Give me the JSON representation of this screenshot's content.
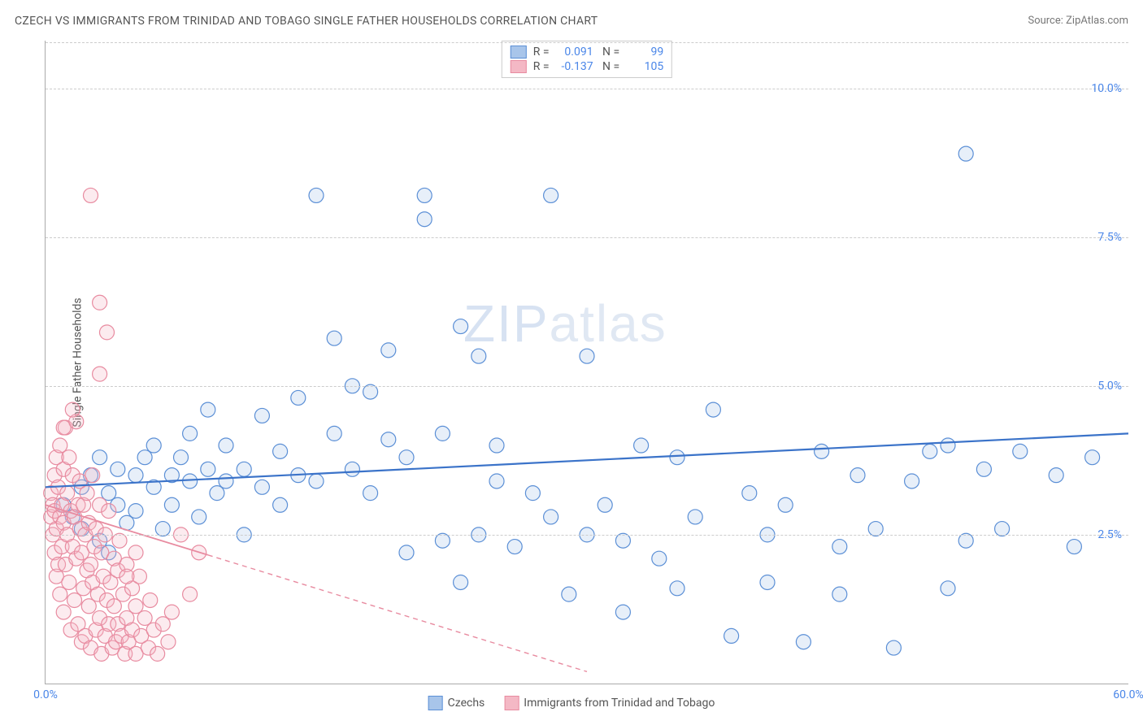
{
  "title": "CZECH VS IMMIGRANTS FROM TRINIDAD AND TOBAGO SINGLE FATHER HOUSEHOLDS CORRELATION CHART",
  "source": "Source: ZipAtlas.com",
  "ylabel": "Single Father Households",
  "watermark_a": "ZIP",
  "watermark_b": "atlas",
  "chart": {
    "type": "scatter",
    "xlim": [
      0,
      60
    ],
    "ylim": [
      0,
      10.8
    ],
    "xticks": [
      {
        "v": 0,
        "label": "0.0%"
      },
      {
        "v": 60,
        "label": "60.0%"
      }
    ],
    "yticks": [
      {
        "v": 2.5,
        "label": "2.5%"
      },
      {
        "v": 5.0,
        "label": "5.0%"
      },
      {
        "v": 7.5,
        "label": "7.5%"
      },
      {
        "v": 10.0,
        "label": "10.0%"
      }
    ],
    "grid_color": "#cccccc",
    "background_color": "#ffffff",
    "axis_color": "#aaaaaa",
    "tick_label_color": "#4a86e8",
    "marker_radius": 9,
    "marker_stroke_width": 1.2,
    "marker_fill_opacity": 0.28,
    "series": [
      {
        "name": "Czechs",
        "color_stroke": "#5b8fd6",
        "color_fill": "#a8c5ea",
        "R": "0.091",
        "N": "99",
        "trend": {
          "x1": 0,
          "y1": 3.3,
          "x2": 60,
          "y2": 4.2,
          "dash": "none",
          "width": 2.2,
          "color": "#3b73c9"
        },
        "points": [
          [
            1,
            3.0
          ],
          [
            1.5,
            2.8
          ],
          [
            2,
            2.6
          ],
          [
            2,
            3.3
          ],
          [
            2.5,
            3.5
          ],
          [
            3,
            2.4
          ],
          [
            3,
            3.8
          ],
          [
            3.5,
            2.2
          ],
          [
            3.5,
            3.2
          ],
          [
            4,
            3.0
          ],
          [
            4,
            3.6
          ],
          [
            4.5,
            2.7
          ],
          [
            5,
            3.5
          ],
          [
            5,
            2.9
          ],
          [
            5.5,
            3.8
          ],
          [
            6,
            3.3
          ],
          [
            6,
            4.0
          ],
          [
            6.5,
            2.6
          ],
          [
            7,
            3.5
          ],
          [
            7,
            3.0
          ],
          [
            7.5,
            3.8
          ],
          [
            8,
            4.2
          ],
          [
            8,
            3.4
          ],
          [
            8.5,
            2.8
          ],
          [
            9,
            3.6
          ],
          [
            9,
            4.6
          ],
          [
            9.5,
            3.2
          ],
          [
            10,
            3.4
          ],
          [
            10,
            4.0
          ],
          [
            11,
            3.6
          ],
          [
            11,
            2.5
          ],
          [
            12,
            4.5
          ],
          [
            12,
            3.3
          ],
          [
            13,
            3.0
          ],
          [
            13,
            3.9
          ],
          [
            14,
            4.8
          ],
          [
            14,
            3.5
          ],
          [
            15,
            8.2
          ],
          [
            15,
            3.4
          ],
          [
            16,
            4.2
          ],
          [
            16,
            5.8
          ],
          [
            17,
            3.6
          ],
          [
            17,
            5.0
          ],
          [
            18,
            4.9
          ],
          [
            18,
            3.2
          ],
          [
            19,
            4.1
          ],
          [
            19,
            5.6
          ],
          [
            20,
            3.8
          ],
          [
            20,
            2.2
          ],
          [
            21,
            8.2
          ],
          [
            21,
            7.8
          ],
          [
            22,
            4.2
          ],
          [
            22,
            2.4
          ],
          [
            23,
            1.7
          ],
          [
            23,
            6.0
          ],
          [
            24,
            2.5
          ],
          [
            24,
            5.5
          ],
          [
            25,
            3.4
          ],
          [
            25,
            4.0
          ],
          [
            26,
            2.3
          ],
          [
            27,
            3.2
          ],
          [
            28,
            8.2
          ],
          [
            28,
            2.8
          ],
          [
            29,
            1.5
          ],
          [
            30,
            5.5
          ],
          [
            30,
            2.5
          ],
          [
            31,
            3.0
          ],
          [
            32,
            1.2
          ],
          [
            32,
            2.4
          ],
          [
            33,
            4.0
          ],
          [
            34,
            2.1
          ],
          [
            35,
            3.8
          ],
          [
            35,
            1.6
          ],
          [
            36,
            2.8
          ],
          [
            37,
            4.6
          ],
          [
            38,
            0.8
          ],
          [
            39,
            3.2
          ],
          [
            40,
            2.5
          ],
          [
            40,
            1.7
          ],
          [
            41,
            3.0
          ],
          [
            42,
            0.7
          ],
          [
            43,
            3.9
          ],
          [
            44,
            2.3
          ],
          [
            44,
            1.5
          ],
          [
            45,
            3.5
          ],
          [
            46,
            2.6
          ],
          [
            47,
            0.6
          ],
          [
            48,
            3.4
          ],
          [
            49,
            3.9
          ],
          [
            50,
            1.6
          ],
          [
            50,
            4.0
          ],
          [
            51,
            2.4
          ],
          [
            51,
            8.9
          ],
          [
            52,
            3.6
          ],
          [
            53,
            2.6
          ],
          [
            54,
            3.9
          ],
          [
            56,
            3.5
          ],
          [
            57,
            2.3
          ],
          [
            58,
            3.8
          ]
        ]
      },
      {
        "name": "Immigrants from Trinidad and Tobago",
        "color_stroke": "#e88ba0",
        "color_fill": "#f4b8c5",
        "R": "-0.137",
        "N": "105",
        "trend": {
          "x1": 0,
          "y1": 3.0,
          "x2": 30,
          "y2": 0.2,
          "dash": "6 5",
          "width": 1.4,
          "color": "#e88ba0",
          "solid_until": 9
        },
        "points": [
          [
            0.3,
            2.8
          ],
          [
            0.3,
            3.2
          ],
          [
            0.4,
            2.5
          ],
          [
            0.4,
            3.0
          ],
          [
            0.5,
            3.5
          ],
          [
            0.5,
            2.2
          ],
          [
            0.5,
            2.9
          ],
          [
            0.6,
            3.8
          ],
          [
            0.6,
            2.6
          ],
          [
            0.6,
            1.8
          ],
          [
            0.7,
            3.3
          ],
          [
            0.7,
            2.0
          ],
          [
            0.8,
            2.8
          ],
          [
            0.8,
            4.0
          ],
          [
            0.8,
            1.5
          ],
          [
            0.9,
            3.0
          ],
          [
            0.9,
            2.3
          ],
          [
            1.0,
            3.6
          ],
          [
            1.0,
            1.2
          ],
          [
            1.0,
            2.7
          ],
          [
            1.1,
            4.3
          ],
          [
            1.1,
            2.0
          ],
          [
            1.2,
            3.2
          ],
          [
            1.2,
            2.5
          ],
          [
            1.3,
            1.7
          ],
          [
            1.3,
            3.8
          ],
          [
            1.4,
            2.9
          ],
          [
            1.4,
            0.9
          ],
          [
            1.5,
            2.3
          ],
          [
            1.5,
            3.5
          ],
          [
            1.6,
            1.4
          ],
          [
            1.6,
            2.8
          ],
          [
            1.7,
            4.4
          ],
          [
            1.7,
            2.1
          ],
          [
            1.8,
            3.0
          ],
          [
            1.8,
            1.0
          ],
          [
            1.9,
            2.6
          ],
          [
            1.9,
            3.4
          ],
          [
            2.0,
            0.7
          ],
          [
            2.0,
            2.2
          ],
          [
            2.1,
            1.6
          ],
          [
            2.1,
            3.0
          ],
          [
            2.2,
            2.5
          ],
          [
            2.2,
            0.8
          ],
          [
            2.3,
            1.9
          ],
          [
            2.3,
            3.2
          ],
          [
            2.4,
            2.7
          ],
          [
            2.4,
            1.3
          ],
          [
            2.5,
            0.6
          ],
          [
            2.5,
            2.0
          ],
          [
            2.6,
            3.5
          ],
          [
            2.6,
            1.7
          ],
          [
            2.7,
            2.3
          ],
          [
            2.8,
            0.9
          ],
          [
            2.8,
            2.6
          ],
          [
            2.9,
            1.5
          ],
          [
            3.0,
            3.0
          ],
          [
            3.0,
            1.1
          ],
          [
            3.1,
            2.2
          ],
          [
            3.1,
            0.5
          ],
          [
            3.2,
            1.8
          ],
          [
            3.3,
            2.5
          ],
          [
            3.3,
            0.8
          ],
          [
            3.4,
            1.4
          ],
          [
            3.5,
            2.9
          ],
          [
            3.5,
            1.0
          ],
          [
            3.6,
            1.7
          ],
          [
            3.7,
            0.6
          ],
          [
            3.8,
            2.1
          ],
          [
            3.8,
            1.3
          ],
          [
            3.9,
            0.7
          ],
          [
            4.0,
            1.9
          ],
          [
            4.0,
            1.0
          ],
          [
            4.1,
            2.4
          ],
          [
            4.2,
            0.8
          ],
          [
            4.3,
            1.5
          ],
          [
            4.4,
            0.5
          ],
          [
            4.5,
            2.0
          ],
          [
            4.5,
            1.1
          ],
          [
            4.6,
            0.7
          ],
          [
            4.8,
            1.6
          ],
          [
            4.8,
            0.9
          ],
          [
            5.0,
            1.3
          ],
          [
            5.0,
            0.5
          ],
          [
            5.2,
            1.8
          ],
          [
            5.3,
            0.8
          ],
          [
            5.5,
            1.1
          ],
          [
            5.7,
            0.6
          ],
          [
            5.8,
            1.4
          ],
          [
            6.0,
            0.9
          ],
          [
            6.2,
            0.5
          ],
          [
            6.5,
            1.0
          ],
          [
            6.8,
            0.7
          ],
          [
            7.0,
            1.2
          ],
          [
            2.5,
            8.2
          ],
          [
            3.4,
            5.9
          ],
          [
            3.0,
            5.2
          ],
          [
            3.0,
            6.4
          ],
          [
            1.5,
            4.6
          ],
          [
            1.0,
            4.3
          ],
          [
            4.5,
            1.8
          ],
          [
            5.0,
            2.2
          ],
          [
            8.5,
            2.2
          ],
          [
            7.5,
            2.5
          ],
          [
            8.0,
            1.5
          ]
        ]
      }
    ],
    "bottom_legend": [
      {
        "label": "Czechs",
        "stroke": "#5b8fd6",
        "fill": "#a8c5ea"
      },
      {
        "label": "Immigrants from Trinidad and Tobago",
        "stroke": "#e88ba0",
        "fill": "#f4b8c5"
      }
    ]
  }
}
